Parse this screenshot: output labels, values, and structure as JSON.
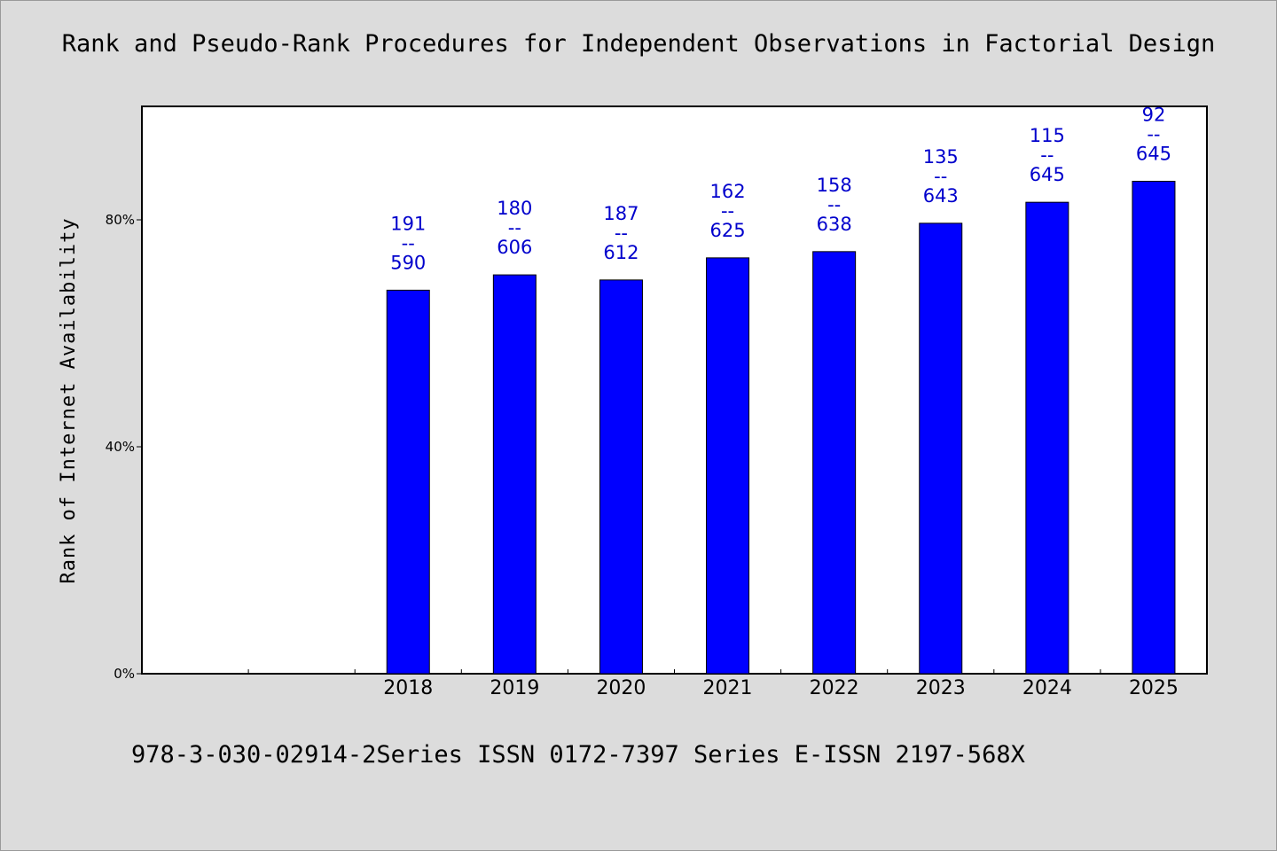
{
  "title": "Rank and Pseudo-Rank Procedures for Independent Observations in Factorial Design",
  "footer": "978-3-030-02914-2Series ISSN 0172-7397 Series E-ISSN 2197-568X",
  "colors": {
    "bar": "#0000ff",
    "label": "#0000cc",
    "plot_bg": "#ffffff",
    "page_bg": "#dcdcdc"
  },
  "chart_data": {
    "type": "bar",
    "ylabel": "Rank of Internet Availability",
    "xlabel": "",
    "ylim": [
      0,
      1.0
    ],
    "yticks": [
      {
        "value": 0,
        "label": "0%"
      },
      {
        "value": 0.4,
        "label": "40%"
      },
      {
        "value": 0.8,
        "label": "80%"
      }
    ],
    "x_slots": 10,
    "categories": [
      "2018",
      "2019",
      "2020",
      "2021",
      "2022",
      "2023",
      "2024",
      "2025"
    ],
    "category_slots": [
      2,
      3,
      4,
      5,
      6,
      7,
      8,
      9
    ],
    "values": [
      0.676,
      0.703,
      0.694,
      0.733,
      0.744,
      0.794,
      0.831,
      0.868
    ],
    "data_labels": [
      {
        "top": "191",
        "sep": "--",
        "bottom": "590"
      },
      {
        "top": "180",
        "sep": "--",
        "bottom": "606"
      },
      {
        "top": "187",
        "sep": "--",
        "bottom": "612"
      },
      {
        "top": "162",
        "sep": "--",
        "bottom": "625"
      },
      {
        "top": "158",
        "sep": "--",
        "bottom": "638"
      },
      {
        "top": "135",
        "sep": "--",
        "bottom": "643"
      },
      {
        "top": "115",
        "sep": "--",
        "bottom": "645"
      },
      {
        "top": "92",
        "sep": "--",
        "bottom": "645"
      }
    ],
    "grid": false,
    "legend": "none"
  }
}
